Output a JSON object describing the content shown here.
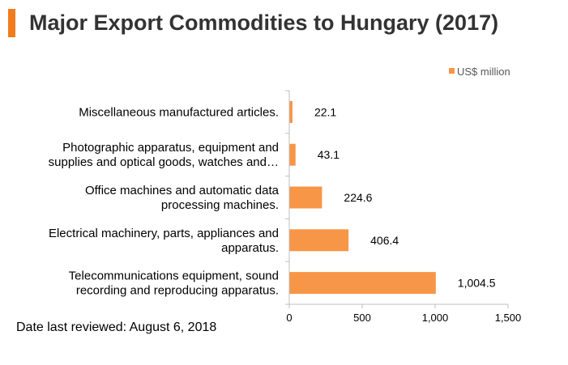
{
  "title": "Major Export Commodities to Hungary (2017)",
  "footer": "Date last reviewed: August 6, 2018",
  "colors": {
    "accent": "#f07c1e",
    "bar": "#f79646",
    "axis": "#bfbfbf",
    "title": "#333333",
    "legend_text": "#595959"
  },
  "chart_data": {
    "type": "bar",
    "orientation": "horizontal",
    "categories": [
      [
        "Miscellaneous manufactured articles."
      ],
      [
        "Photographic apparatus, equipment and",
        "supplies and optical goods, watches and…"
      ],
      [
        "Office machines and automatic data",
        "processing machines."
      ],
      [
        "Electrical machinery, parts, appliances and",
        "apparatus."
      ],
      [
        "Telecommunications equipment, sound",
        "recording and reproducing apparatus."
      ]
    ],
    "series": [
      {
        "name": "US$ million",
        "values": [
          22.1,
          43.1,
          224.6,
          406.4,
          1004.5
        ]
      }
    ],
    "data_labels": [
      "22.1",
      "43.1",
      "224.6",
      "406.4",
      "1,004.5"
    ],
    "xlim": [
      0,
      1500
    ],
    "xticks": [
      0,
      500,
      1000,
      1500
    ],
    "xtick_labels": [
      "0",
      "500",
      "1,000",
      "1,500"
    ],
    "legend_position": "top-right",
    "grid": false
  }
}
